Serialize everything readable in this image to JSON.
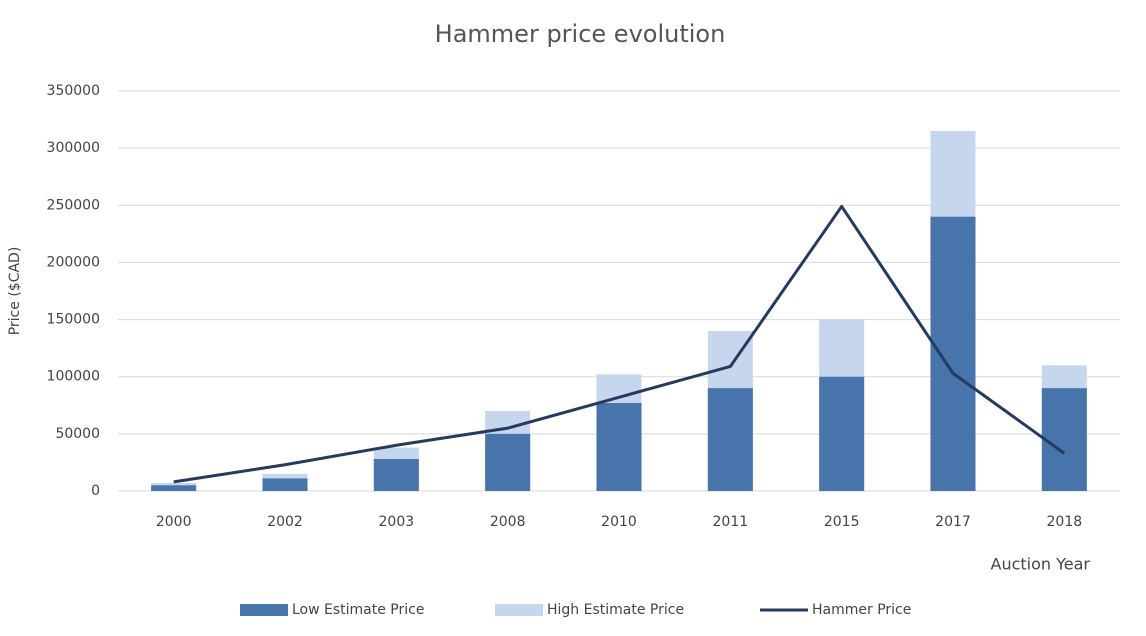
{
  "chart_data": {
    "type": "bar_line",
    "title": "Hammer price evolution",
    "y_label": "Price ($CAD)",
    "x_label": "Auction Year",
    "categories": [
      "2000",
      "2002",
      "2003",
      "2008",
      "2010",
      "2011",
      "2015",
      "2017",
      "2018"
    ],
    "barmode": "overlay",
    "series": [
      {
        "name": "Low Estimate Price",
        "type": "bar",
        "color": "#4674ab",
        "values": [
          5000,
          11000,
          28000,
          50000,
          77000,
          90000,
          100000,
          240000,
          90000
        ]
      },
      {
        "name": "High Estimate Price",
        "type": "bar",
        "color": "#c5d6ed",
        "values": [
          7000,
          15000,
          38000,
          70000,
          102000,
          140000,
          150000,
          315000,
          110000
        ]
      },
      {
        "name": "Hammer Price",
        "type": "line",
        "color": "#253a5e",
        "values": [
          8000,
          23000,
          40000,
          55000,
          82000,
          109000,
          249000,
          103000,
          33000
        ]
      }
    ],
    "ylim": [
      0,
      350000
    ],
    "yticks": [
      0,
      50000,
      100000,
      150000,
      200000,
      250000,
      300000,
      350000
    ],
    "grid": true,
    "legend": "bottom"
  }
}
